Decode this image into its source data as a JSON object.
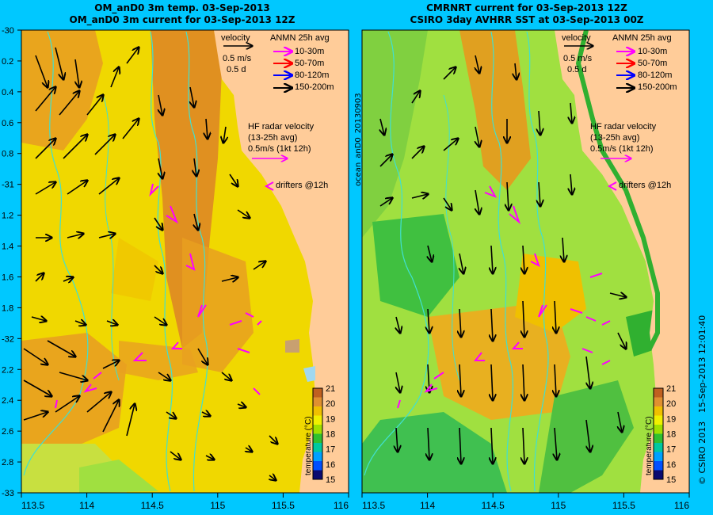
{
  "left_panel": {
    "title_line1": "OM_anD0 3m temp. 03-Sep-2013",
    "title_line2": "OM_anD0 3m current for 03-Sep-2013 12Z"
  },
  "right_panel": {
    "title_line1": "CMRNRT current for 03-Sep-2013 12Z",
    "title_line2": "CSIRO 3day AVHRR SST at 03-Sep-2013 00Z",
    "side_label": "ocean_anD0_20130903"
  },
  "legend": {
    "velocity": "velocity",
    "speed": "0.5 m/s",
    "duration": "0.5 d",
    "anmn_title": "ANMN 25h avg",
    "depths": [
      {
        "label": "10-30m",
        "color": "#ff00ff"
      },
      {
        "label": "50-70m",
        "color": "#ff0000"
      },
      {
        "label": "80-120m",
        "color": "#0000ff"
      },
      {
        "label": "150-200m",
        "color": "#000000"
      }
    ],
    "hf_title": "HF radar velocity",
    "hf_avg": "(13-25h avg)",
    "hf_scale": "0.5m/s (1kt 12h)",
    "drifters": "drifters @12h"
  },
  "colorbar": {
    "label": "temperature (°C)",
    "ticks": [
      "15",
      "16",
      "17",
      "18",
      "19",
      "20",
      "21"
    ],
    "colors": [
      "#0a0a70",
      "#0050ff",
      "#00a0ff",
      "#00c8a0",
      "#30c030",
      "#a0e000",
      "#f0f000",
      "#f0c000",
      "#e09030",
      "#c06020"
    ]
  },
  "axes": {
    "x_ticks": [
      "113.5",
      "114",
      "114.5",
      "115",
      "115.5",
      "116"
    ],
    "y_ticks": [
      "-30",
      "-30.2",
      "-30.4",
      "-30.6",
      "-30.8",
      "-31",
      "-31.2",
      "-31.4",
      "-31.6",
      "-31.8",
      "-32",
      "-32.2",
      "-32.4",
      "-32.6",
      "-32.8",
      "-33"
    ],
    "left_y_labels": [
      "-30",
      "0.2",
      "0.4",
      "0.6",
      "0.8",
      "-31",
      "1.2",
      "1.4",
      "1.6",
      "1.8",
      "-32",
      "2.2",
      "2.4",
      "2.6",
      "2.8",
      "-33"
    ]
  },
  "footer": {
    "copyright": "© CSIRO 2013",
    "timestamp": "15-Sep-2013 12:01:40"
  },
  "colors": {
    "background": "#00c8ff",
    "land": "#ffcc99",
    "warm": "#e8a020",
    "mid": "#f0d800",
    "cool": "#90e040",
    "isobath": "#40e0d0",
    "drifter": "#ff00ff"
  }
}
